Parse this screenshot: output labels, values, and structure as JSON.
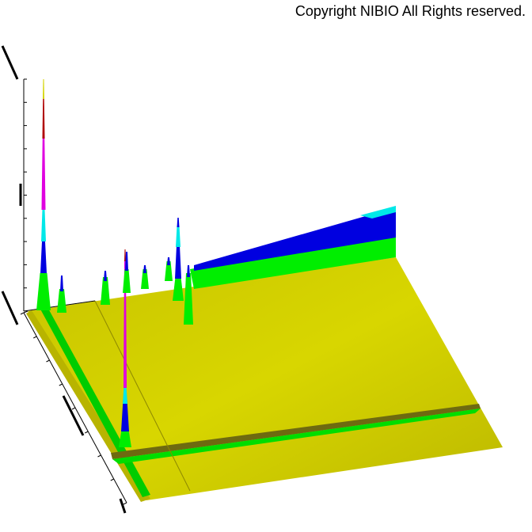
{
  "copyright": "Copyright NIBIO All Rights reserved.",
  "chart_data": {
    "type": "surface",
    "title": "",
    "xlabel": "",
    "ylabel": "",
    "zlabel": "",
    "color_scale": [
      "#d4d400",
      "#00ee00",
      "#0000e0",
      "#00e8e8",
      "#e000e0",
      "#b00000",
      "#f0f000"
    ],
    "colors": {
      "base": "#d4d400",
      "ridge": "#00ee00",
      "low": "#0000e0",
      "mid": "#00e8e8",
      "high": "#e000e0",
      "top": "#b00000"
    }
  }
}
